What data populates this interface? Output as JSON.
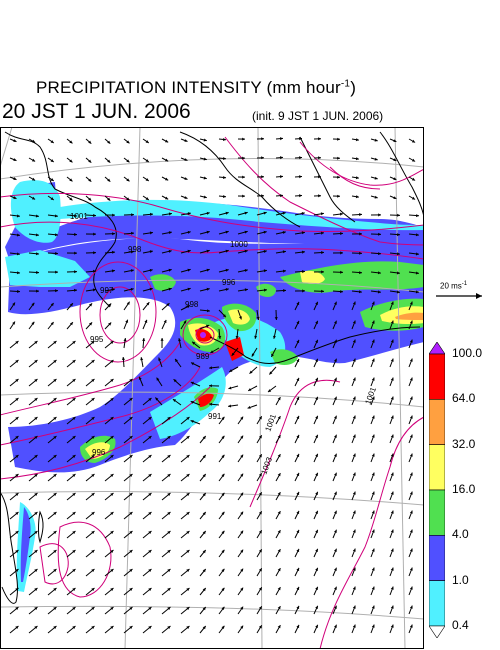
{
  "title": {
    "main": "PRECIPITATION INTENSITY (mm hour",
    "exp": "-1",
    "close": ")"
  },
  "valid_time": "20 JST 1 JUN. 2006",
  "init_time": "(init. 9 JST 1 JUN. 2006)",
  "wind_reference": {
    "label": "20 ms",
    "exp": "-1"
  },
  "colorbar": {
    "labels": [
      "100.0",
      "64.0",
      "32.0",
      "16.0",
      "4.0",
      "1.0",
      "0.4"
    ],
    "colors": [
      "#b020ff",
      "#ff0000",
      "#ffa040",
      "#ffff60",
      "#50e050",
      "#5050ff",
      "#50f0ff"
    ],
    "bottom_color": "#ffffff"
  },
  "isobar_labels": [
    "1001",
    "998",
    "1000",
    "997",
    "998",
    "996",
    "995",
    "989",
    "991",
    "996",
    "1003",
    "1001",
    "1001"
  ],
  "colors": {
    "isobar": "#d0007a",
    "coast": "#000000",
    "grid": "#b0b0b0"
  }
}
